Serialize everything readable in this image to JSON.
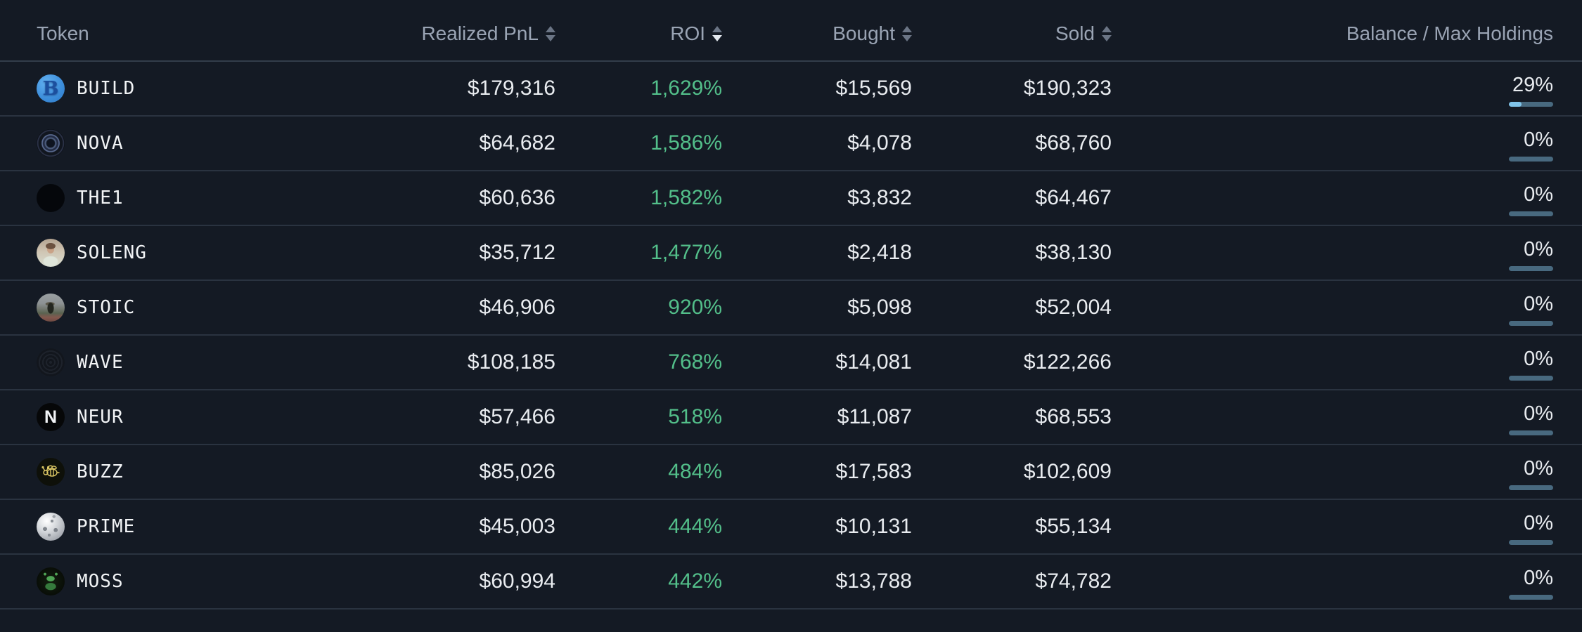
{
  "colors": {
    "background": "#141a24",
    "accent_green": "#53bf8a",
    "bar_fill": "#80c4ea",
    "bar_track": "#48697f",
    "header_text": "#9aa4b4",
    "value_text": "#e9ecf0",
    "row_divider": "#2a3340"
  },
  "table": {
    "columns": [
      {
        "key": "token",
        "label": "Token",
        "sortable": false
      },
      {
        "key": "realized_pnl",
        "label": "Realized PnL",
        "sortable": true
      },
      {
        "key": "roi",
        "label": "ROI",
        "sortable": true
      },
      {
        "key": "bought",
        "label": "Bought",
        "sortable": true
      },
      {
        "key": "sold",
        "label": "Sold",
        "sortable": true
      },
      {
        "key": "balance",
        "label": "Balance / Max Holdings",
        "sortable": false
      }
    ],
    "sort": {
      "column": "roi",
      "direction": "desc"
    },
    "rows": [
      {
        "token": "BUILD",
        "icon": "build",
        "icon_text": "B",
        "realized_pnl": "$179,316",
        "roi": "1,629%",
        "bought": "$15,569",
        "sold": "$190,323",
        "balance_pct": "29%",
        "balance_fill": 29
      },
      {
        "token": "NOVA",
        "icon": "nova",
        "icon_text": "",
        "realized_pnl": "$64,682",
        "roi": "1,586%",
        "bought": "$4,078",
        "sold": "$68,760",
        "balance_pct": "0%",
        "balance_fill": 0
      },
      {
        "token": "THE1",
        "icon": "the1",
        "icon_text": "",
        "realized_pnl": "$60,636",
        "roi": "1,582%",
        "bought": "$3,832",
        "sold": "$64,467",
        "balance_pct": "0%",
        "balance_fill": 0
      },
      {
        "token": "SOLENG",
        "icon": "soleng",
        "icon_text": "",
        "realized_pnl": "$35,712",
        "roi": "1,477%",
        "bought": "$2,418",
        "sold": "$38,130",
        "balance_pct": "0%",
        "balance_fill": 0
      },
      {
        "token": "STOIC",
        "icon": "stoic",
        "icon_text": "",
        "realized_pnl": "$46,906",
        "roi": "920%",
        "bought": "$5,098",
        "sold": "$52,004",
        "balance_pct": "0%",
        "balance_fill": 0
      },
      {
        "token": "WAVE",
        "icon": "wave",
        "icon_text": "",
        "realized_pnl": "$108,185",
        "roi": "768%",
        "bought": "$14,081",
        "sold": "$122,266",
        "balance_pct": "0%",
        "balance_fill": 0
      },
      {
        "token": "NEUR",
        "icon": "neur",
        "icon_text": "N",
        "realized_pnl": "$57,466",
        "roi": "518%",
        "bought": "$11,087",
        "sold": "$68,553",
        "balance_pct": "0%",
        "balance_fill": 0
      },
      {
        "token": "BUZZ",
        "icon": "buzz",
        "icon_text": "",
        "realized_pnl": "$85,026",
        "roi": "484%",
        "bought": "$17,583",
        "sold": "$102,609",
        "balance_pct": "0%",
        "balance_fill": 0
      },
      {
        "token": "PRIME",
        "icon": "prime",
        "icon_text": "",
        "realized_pnl": "$45,003",
        "roi": "444%",
        "bought": "$10,131",
        "sold": "$55,134",
        "balance_pct": "0%",
        "balance_fill": 0
      },
      {
        "token": "MOSS",
        "icon": "moss",
        "icon_text": "",
        "realized_pnl": "$60,994",
        "roi": "442%",
        "bought": "$13,788",
        "sold": "$74,782",
        "balance_pct": "0%",
        "balance_fill": 0
      }
    ]
  }
}
